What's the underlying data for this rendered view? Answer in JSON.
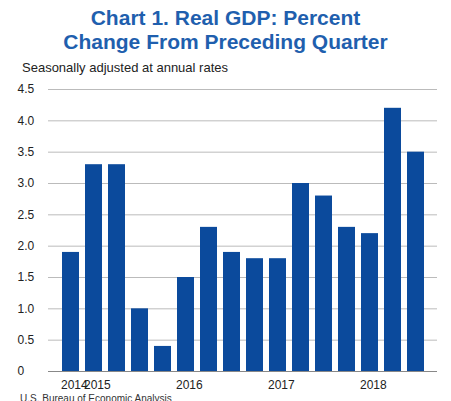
{
  "chart_data": {
    "type": "bar",
    "title": "Chart 1. Real GDP: Percent Change From Preceding Quarter",
    "subtitle": "Seasonally adjusted at annual rates",
    "caption": "U.S. Bureau of Economic Analysis",
    "categories": [
      "2014",
      "2015",
      null,
      null,
      null,
      "2016",
      null,
      null,
      null,
      "2017",
      null,
      null,
      null,
      "2018",
      null,
      null
    ],
    "values": [
      1.9,
      3.3,
      3.3,
      1.0,
      0.4,
      1.5,
      2.3,
      1.9,
      1.8,
      1.8,
      3.0,
      2.8,
      2.3,
      2.2,
      4.2,
      3.5
    ],
    "color": "#0b4a9c",
    "ylim": [
      0,
      4.5
    ],
    "yticks": [
      0,
      0.5,
      {
        "value": 1,
        "label": "1.0"
      },
      1.5,
      {
        "value": 2,
        "label": "2.0"
      },
      2.5,
      {
        "value": 3,
        "label": "3.0"
      },
      3.5,
      {
        "value": 4,
        "label": "4.0"
      },
      4.5
    ],
    "grid": true
  }
}
